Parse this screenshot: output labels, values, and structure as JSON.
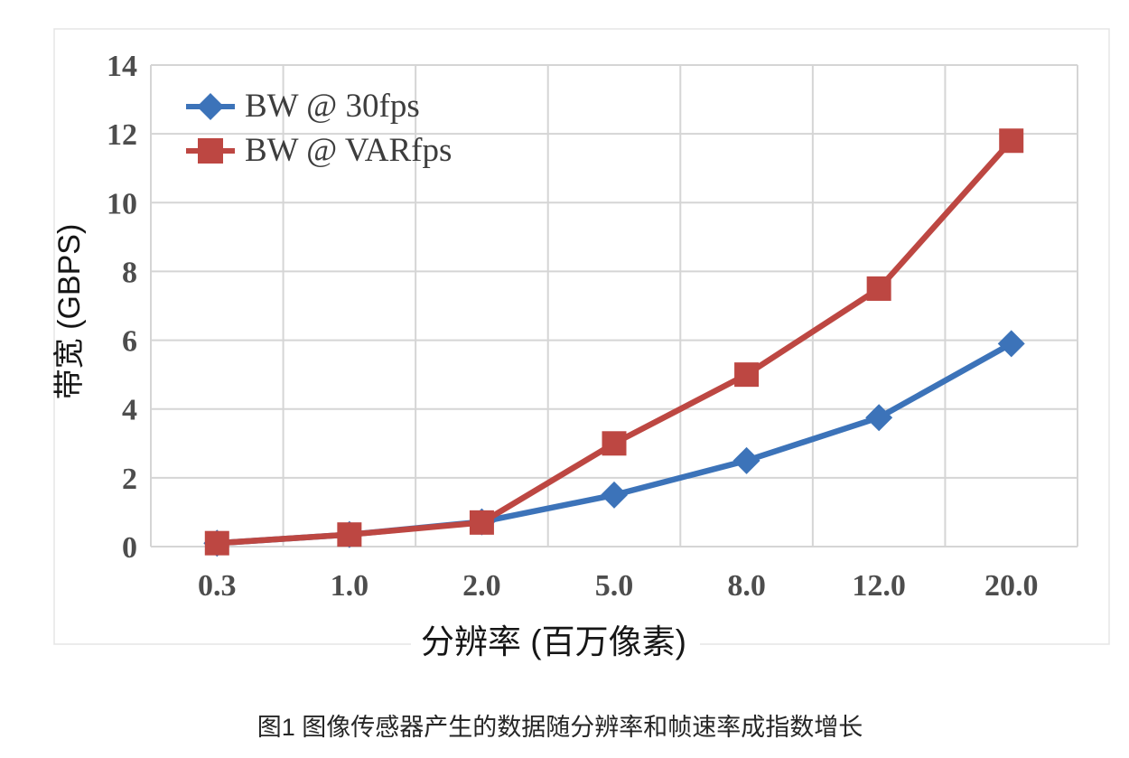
{
  "figure": {
    "caption": "图1 图像传感器产生的数据随分辨率和帧速率成指数增长"
  },
  "chart_data": {
    "type": "line",
    "title": "",
    "categories": [
      "0.3",
      "1.0",
      "2.0",
      "5.0",
      "8.0",
      "12.0",
      "20.0"
    ],
    "series": [
      {
        "name": "BW @ 30fps",
        "marker": "diamond",
        "color": "#3C73B9",
        "values": [
          0.1,
          0.35,
          0.72,
          1.5,
          2.5,
          3.75,
          5.9
        ]
      },
      {
        "name": "BW @ VARfps",
        "marker": "square",
        "color": "#BD4742",
        "values": [
          0.1,
          0.35,
          0.7,
          3.0,
          5.0,
          7.5,
          11.8
        ]
      }
    ],
    "xlabel": "分辨率 (百万像素)",
    "ylabel": "带宽 (GBPS)",
    "ylim": [
      0,
      14
    ],
    "yticks": [
      0,
      2,
      4,
      6,
      8,
      10,
      12,
      14
    ],
    "grid": true,
    "legend_position": "top-left-inside",
    "colors": {
      "gridline": "#d5d5d5",
      "outer_border": "#e5e5e5",
      "tick_label": "#4d4d4d",
      "legend_text": "#3d3d3d",
      "axis_title": "#161616",
      "caption": "#262626",
      "background": "#ffffff"
    }
  }
}
